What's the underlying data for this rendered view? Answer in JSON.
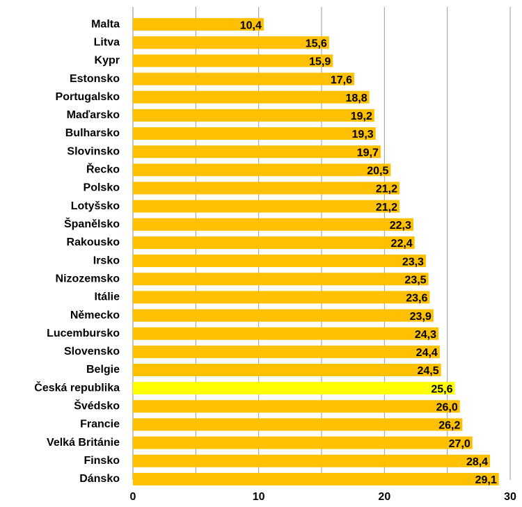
{
  "chart_data": {
    "type": "barh",
    "categories": [
      "Malta",
      "Litva",
      "Kypr",
      "Estonsko",
      "Portugalsko",
      "Maďarsko",
      "Bulharsko",
      "Slovinsko",
      "Řecko",
      "Polsko",
      "Lotyšsko",
      "Španělsko",
      "Rakousko",
      "Irsko",
      "Nizozemsko",
      "Itálie",
      "Německo",
      "Lucembursko",
      "Slovensko",
      "Belgie",
      "Česká republika",
      "Švédsko",
      "Francie",
      "Velká Británie",
      "Finsko",
      "Dánsko"
    ],
    "values": [
      10.4,
      15.6,
      15.9,
      17.6,
      18.8,
      19.2,
      19.3,
      19.7,
      20.5,
      21.2,
      21.2,
      22.3,
      22.4,
      23.3,
      23.5,
      23.6,
      23.9,
      24.3,
      24.4,
      24.5,
      25.6,
      26.0,
      26.2,
      27.0,
      28.4,
      29.1
    ],
    "value_labels": [
      "10,4",
      "15,6",
      "15,9",
      "17,6",
      "18,8",
      "19,2",
      "19,3",
      "19,7",
      "20,5",
      "21,2",
      "21,2",
      "22,3",
      "22,4",
      "23,3",
      "23,5",
      "23,6",
      "23,9",
      "24,3",
      "24,4",
      "24,5",
      "25,6",
      "26,0",
      "26,2",
      "27,0",
      "28,4",
      "29,1"
    ],
    "colors": [
      "#ffc000",
      "#ffc000",
      "#ffc000",
      "#ffc000",
      "#ffc000",
      "#ffc000",
      "#ffc000",
      "#ffc000",
      "#ffc000",
      "#ffc000",
      "#ffc000",
      "#ffc000",
      "#ffc000",
      "#ffc000",
      "#ffc000",
      "#ffc000",
      "#ffc000",
      "#ffc000",
      "#ffc000",
      "#ffc000",
      "#ffff00",
      "#ffc000",
      "#ffc000",
      "#ffc000",
      "#ffc000",
      "#ffc000"
    ],
    "xlim": [
      0,
      30
    ],
    "xticks": [
      0,
      10,
      20,
      30
    ],
    "gridlines": [
      5,
      10,
      15,
      20,
      25,
      30
    ],
    "grid": true
  }
}
